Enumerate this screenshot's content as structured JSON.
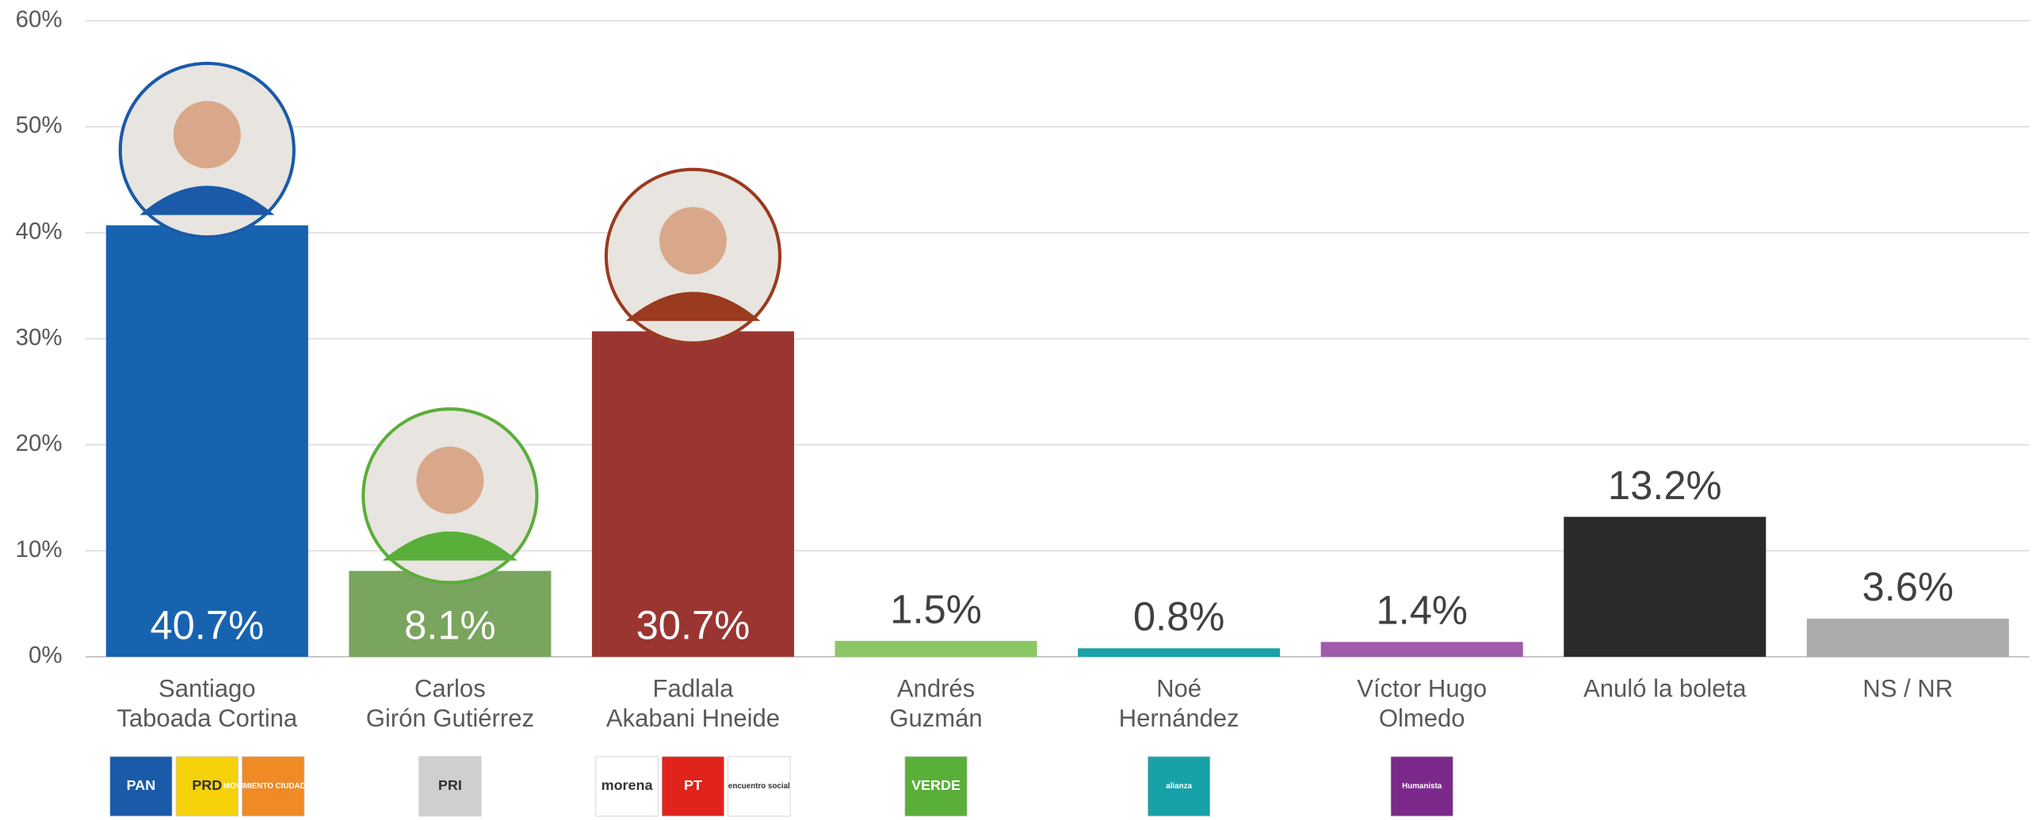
{
  "chart_data": {
    "type": "bar",
    "categories": [
      "Santiago\nTaboada Cortina",
      "Carlos\nGirón Gutiérrez",
      "Fadlala\nAkabani Hneide",
      "Andrés\nGuzmán",
      "Noé\nHernández",
      "Víctor Hugo\nOlmedo",
      "Anuló la boleta",
      "NS / NR"
    ],
    "values": [
      40.7,
      8.1,
      30.7,
      1.5,
      0.8,
      1.4,
      13.2,
      3.6
    ],
    "value_labels": [
      "40.7%",
      "8.1%",
      "30.7%",
      "1.5%",
      "0.8%",
      "1.4%",
      "13.2%",
      "3.6%"
    ],
    "colors": [
      "#1763b0",
      "#79a55e",
      "#9b3532",
      "#8cc766",
      "#17a2a8",
      "#a05bad",
      "#2a2a2a",
      "#ababab"
    ],
    "photo_rings": [
      "#1a5aa8",
      "#5aae3a",
      "#9a3a1e",
      null,
      null,
      null,
      null,
      null
    ],
    "party_logos": [
      [
        {
          "text": "PAN",
          "color": "#1a5aa8"
        },
        {
          "text": "PRD",
          "color": "#f5d10a"
        },
        {
          "text": "MOVIMIENTO CIUDADANO",
          "color": "#f08a24"
        }
      ],
      [
        {
          "text": "PRI",
          "color": "#cfcfcf"
        }
      ],
      [
        {
          "text": "morena",
          "color": "#ffffff"
        },
        {
          "text": "PT",
          "color": "#e0231b"
        },
        {
          "text": "encuentro social",
          "color": "#ffffff"
        }
      ],
      [
        {
          "text": "VERDE",
          "color": "#5aae3a"
        }
      ],
      [
        {
          "text": "alianza",
          "color": "#17a2a8"
        }
      ],
      [
        {
          "text": "Humanista",
          "color": "#7b2a8c"
        }
      ],
      [],
      []
    ],
    "ylim": [
      0,
      60
    ],
    "yticks": [
      {
        "value": 0,
        "label": "0%"
      },
      {
        "value": 10,
        "label": "10%"
      },
      {
        "value": 20,
        "label": "20%"
      },
      {
        "value": 30,
        "label": "30%"
      },
      {
        "value": 40,
        "label": "40%"
      },
      {
        "value": 50,
        "label": "50%"
      },
      {
        "value": 60,
        "label": "60%"
      }
    ],
    "grid": true
  }
}
